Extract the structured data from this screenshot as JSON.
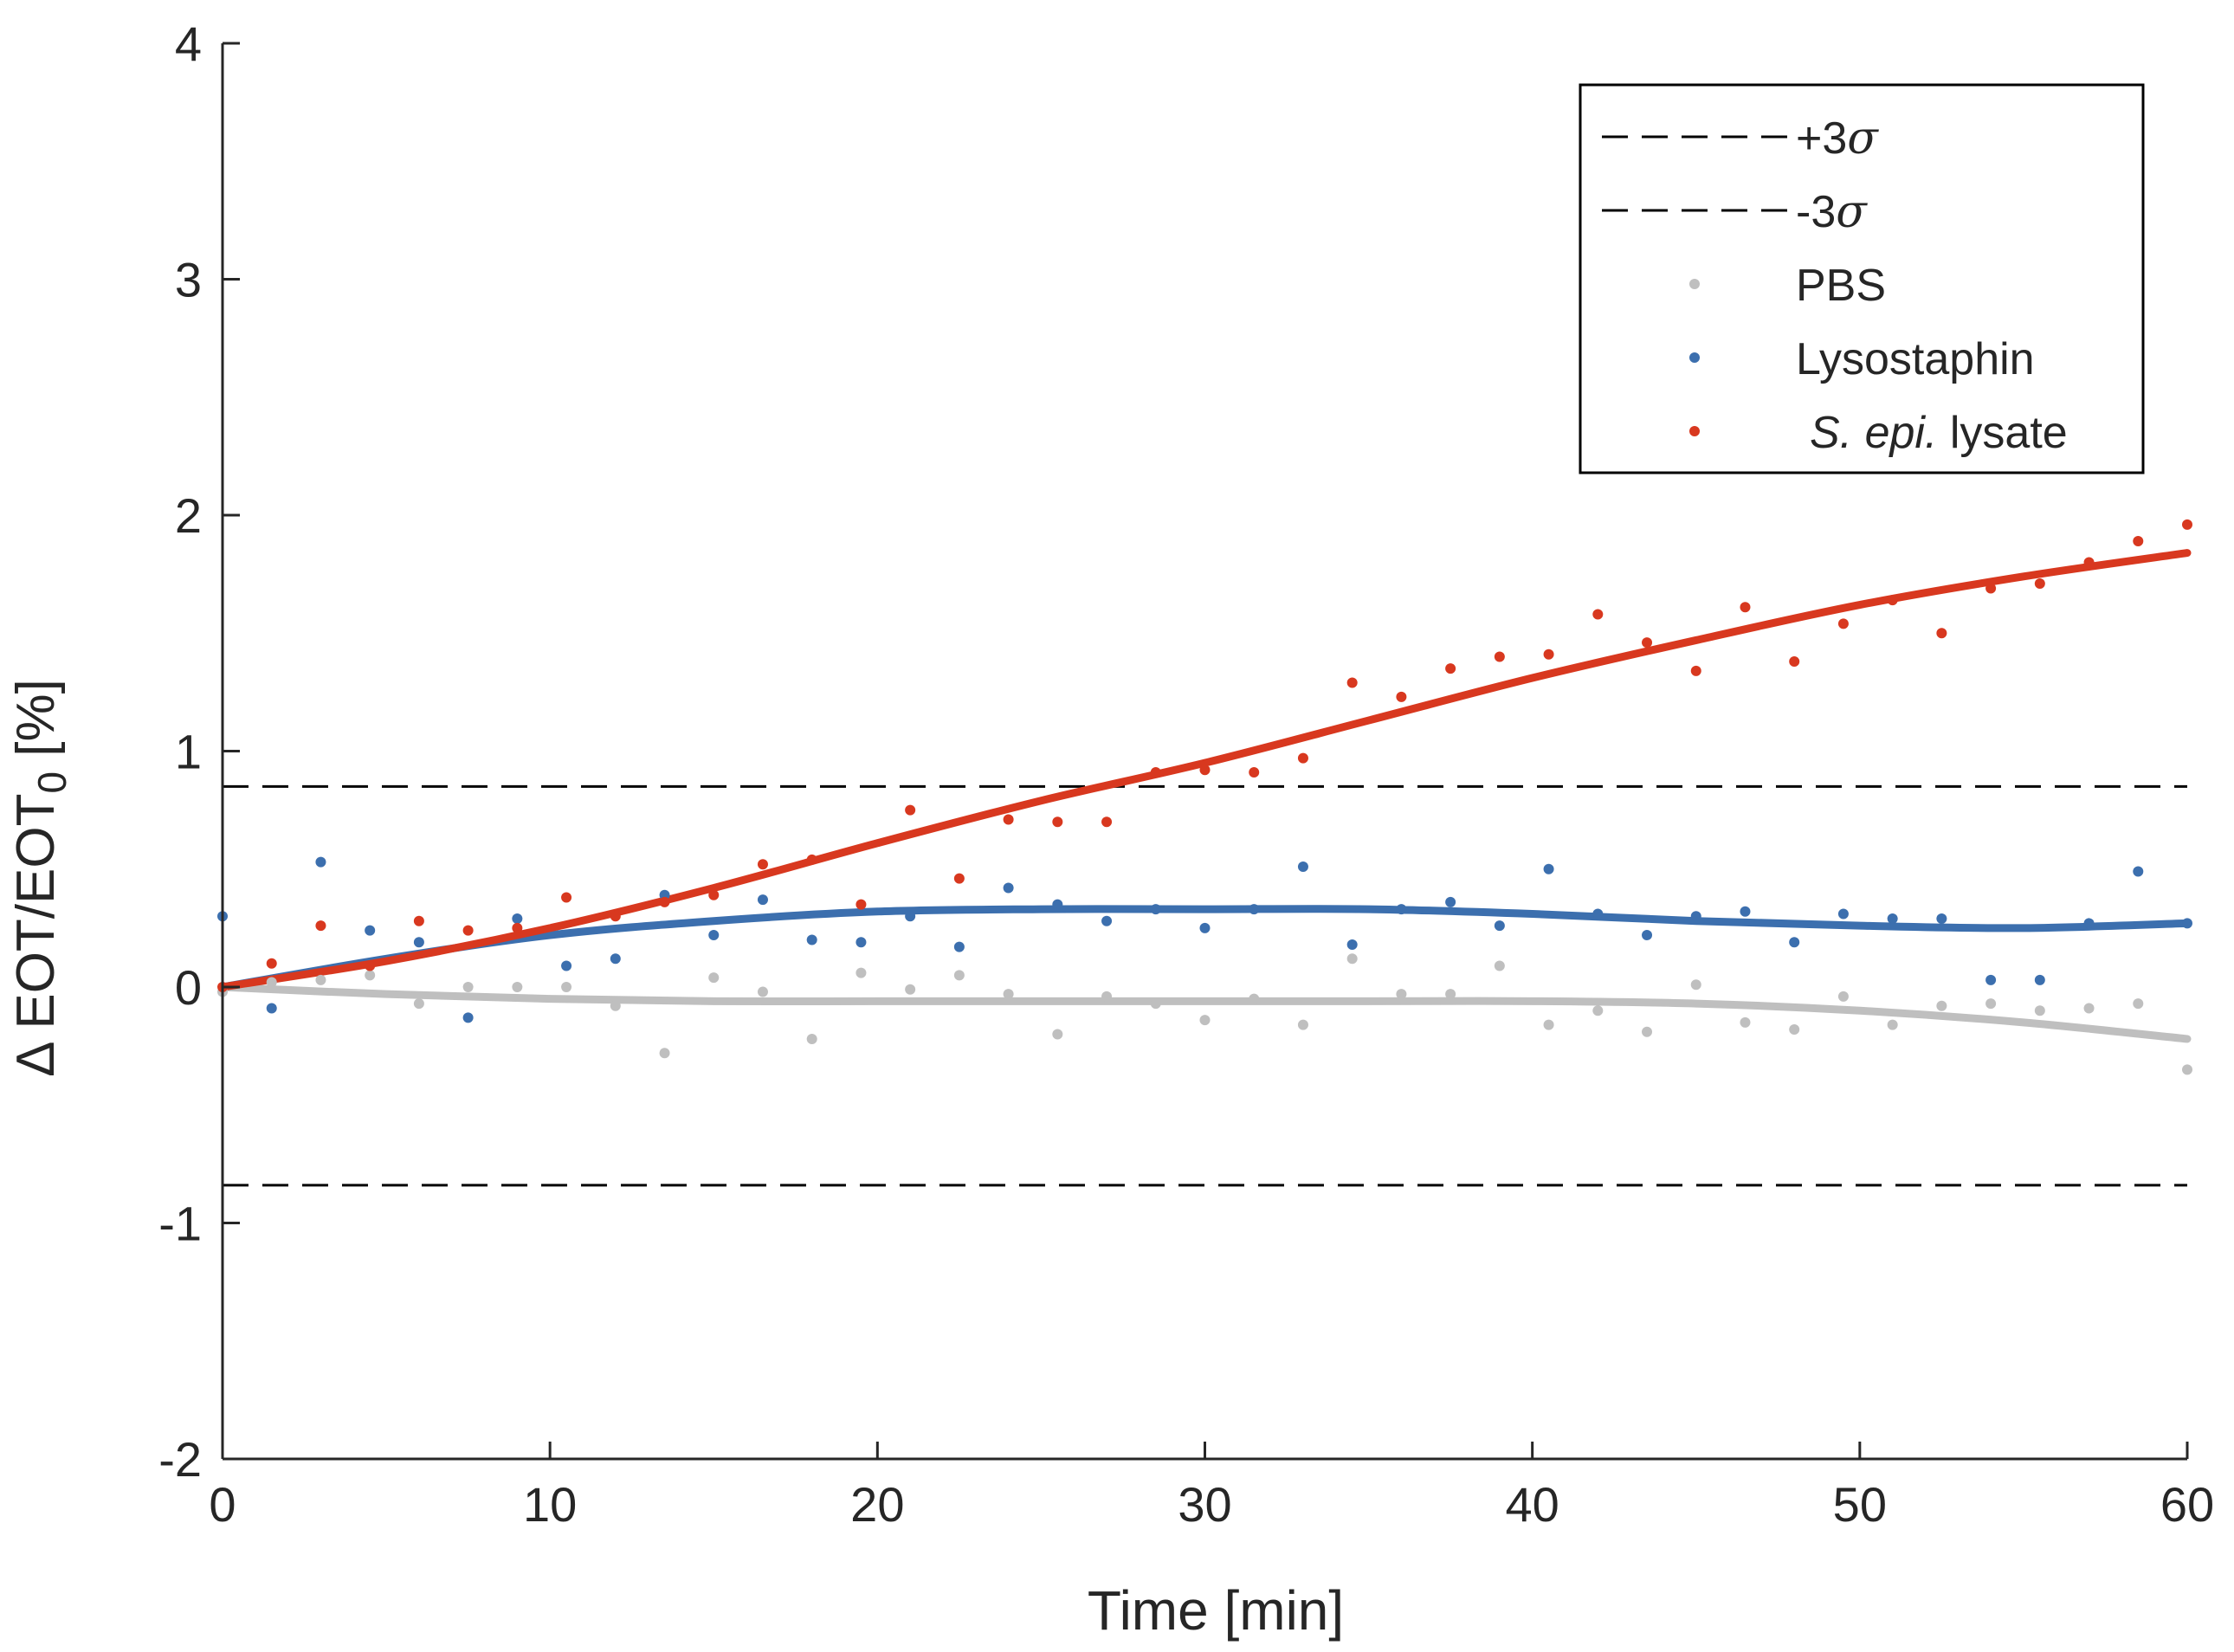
{
  "chart_data": {
    "type": "scatter",
    "title": "",
    "xlabel": "Time [min]",
    "ylabel_main": "Δ EOT/EOT",
    "ylabel_sub": "0",
    "ylabel_tail": " [%]",
    "xlim": [
      0,
      60
    ],
    "ylim": [
      -2,
      4
    ],
    "x_ticks": [
      0,
      10,
      20,
      30,
      40,
      50,
      60
    ],
    "x_tick_labels": [
      "0",
      "10",
      "20",
      "30",
      "40",
      "50",
      "60"
    ],
    "y_ticks": [
      -2,
      -1,
      0,
      1,
      2,
      3,
      4
    ],
    "y_tick_labels": [
      "-2",
      "-1",
      "0",
      "1",
      "2",
      "3",
      "4"
    ],
    "grid": false,
    "legend_position": "top-right",
    "thresholds": [
      {
        "name": "+3σ",
        "label_main": "+3",
        "label_sigma": "σ",
        "value": 0.85,
        "color": "#000000"
      },
      {
        "name": "-3σ",
        "label_main": "-3",
        "label_sigma": "σ",
        "value": -0.84,
        "color": "#000000"
      }
    ],
    "series": [
      {
        "name": "PBS",
        "label_italic": "",
        "label_plain": "PBS",
        "color": "#bfbfbf",
        "points": [
          [
            0,
            -0.02
          ],
          [
            1.5,
            0.02
          ],
          [
            3,
            0.03
          ],
          [
            4.5,
            0.05
          ],
          [
            6,
            -0.07
          ],
          [
            7.5,
            0.0
          ],
          [
            9,
            0.0
          ],
          [
            10.5,
            0.0
          ],
          [
            12,
            -0.08
          ],
          [
            13.5,
            -0.28
          ],
          [
            15,
            0.04
          ],
          [
            16.5,
            -0.02
          ],
          [
            18,
            -0.22
          ],
          [
            19.5,
            0.06
          ],
          [
            21,
            -0.01
          ],
          [
            22.5,
            0.05
          ],
          [
            24,
            -0.03
          ],
          [
            25.5,
            -0.2
          ],
          [
            27,
            -0.04
          ],
          [
            28.5,
            -0.07
          ],
          [
            30,
            -0.14
          ],
          [
            31.5,
            -0.05
          ],
          [
            33,
            -0.16
          ],
          [
            34.5,
            0.12
          ],
          [
            36,
            -0.03
          ],
          [
            37.5,
            -0.03
          ],
          [
            39,
            0.09
          ],
          [
            40.5,
            -0.16
          ],
          [
            42,
            -0.1
          ],
          [
            43.5,
            -0.19
          ],
          [
            45,
            0.01
          ],
          [
            46.5,
            -0.15
          ],
          [
            48,
            -0.18
          ],
          [
            49.5,
            -0.04
          ],
          [
            51,
            -0.16
          ],
          [
            52.5,
            -0.08
          ],
          [
            54,
            -0.07
          ],
          [
            55.5,
            -0.1
          ],
          [
            57,
            -0.09
          ],
          [
            58.5,
            -0.07
          ],
          [
            60,
            -0.35
          ]
        ],
        "fit": [
          [
            0,
            0
          ],
          [
            5,
            -0.03
          ],
          [
            10,
            -0.05
          ],
          [
            15,
            -0.06
          ],
          [
            20,
            -0.06
          ],
          [
            25,
            -0.06
          ],
          [
            30,
            -0.06
          ],
          [
            35,
            -0.06
          ],
          [
            40,
            -0.06
          ],
          [
            45,
            -0.07
          ],
          [
            50,
            -0.1
          ],
          [
            55,
            -0.15
          ],
          [
            60,
            -0.22
          ]
        ]
      },
      {
        "name": "Lysostaphin",
        "label_italic": "",
        "label_plain": "Lysostaphin",
        "color": "#3c6fae",
        "points": [
          [
            0,
            0.3
          ],
          [
            1.5,
            -0.09
          ],
          [
            3,
            0.53
          ],
          [
            4.5,
            0.24
          ],
          [
            6,
            0.19
          ],
          [
            7.5,
            -0.13
          ],
          [
            9,
            0.29
          ],
          [
            10.5,
            0.09
          ],
          [
            12,
            0.12
          ],
          [
            13.5,
            0.39
          ],
          [
            15,
            0.22
          ],
          [
            16.5,
            0.37
          ],
          [
            18,
            0.2
          ],
          [
            19.5,
            0.19
          ],
          [
            21,
            0.3
          ],
          [
            22.5,
            0.17
          ],
          [
            24,
            0.42
          ],
          [
            25.5,
            0.35
          ],
          [
            27,
            0.28
          ],
          [
            28.5,
            0.33
          ],
          [
            30,
            0.25
          ],
          [
            31.5,
            0.33
          ],
          [
            33,
            0.51
          ],
          [
            34.5,
            0.18
          ],
          [
            36,
            0.33
          ],
          [
            37.5,
            0.36
          ],
          [
            39,
            0.26
          ],
          [
            40.5,
            0.5
          ],
          [
            42,
            0.31
          ],
          [
            43.5,
            0.22
          ],
          [
            45,
            0.3
          ],
          [
            46.5,
            0.32
          ],
          [
            48,
            0.19
          ],
          [
            49.5,
            0.31
          ],
          [
            51,
            0.29
          ],
          [
            52.5,
            0.29
          ],
          [
            54,
            0.03
          ],
          [
            55.5,
            0.03
          ],
          [
            57,
            0.27
          ],
          [
            58.5,
            0.49
          ],
          [
            60,
            0.27
          ]
        ],
        "fit": [
          [
            0,
            0
          ],
          [
            5,
            0.12
          ],
          [
            10,
            0.22
          ],
          [
            15,
            0.28
          ],
          [
            20,
            0.32
          ],
          [
            25,
            0.33
          ],
          [
            30,
            0.33
          ],
          [
            35,
            0.33
          ],
          [
            40,
            0.31
          ],
          [
            45,
            0.28
          ],
          [
            50,
            0.26
          ],
          [
            55,
            0.25
          ],
          [
            60,
            0.27
          ]
        ]
      },
      {
        "name": "S. epi. lysate",
        "label_italic": "S. epi.",
        "label_plain": " lysate",
        "color": "#d8381f",
        "points": [
          [
            0,
            0.0
          ],
          [
            1.5,
            0.1
          ],
          [
            3,
            0.26
          ],
          [
            4.5,
            0.09
          ],
          [
            6,
            0.28
          ],
          [
            7.5,
            0.24
          ],
          [
            9,
            0.25
          ],
          [
            10.5,
            0.38
          ],
          [
            12,
            0.3
          ],
          [
            13.5,
            0.36
          ],
          [
            15,
            0.39
          ],
          [
            16.5,
            0.52
          ],
          [
            18,
            0.54
          ],
          [
            19.5,
            0.35
          ],
          [
            21,
            0.75
          ],
          [
            22.5,
            0.46
          ],
          [
            24,
            0.71
          ],
          [
            25.5,
            0.7
          ],
          [
            27,
            0.7
          ],
          [
            28.5,
            0.91
          ],
          [
            30,
            0.92
          ],
          [
            31.5,
            0.91
          ],
          [
            33,
            0.97
          ],
          [
            34.5,
            1.29
          ],
          [
            36,
            1.23
          ],
          [
            37.5,
            1.35
          ],
          [
            39,
            1.4
          ],
          [
            40.5,
            1.41
          ],
          [
            42,
            1.58
          ],
          [
            43.5,
            1.46
          ],
          [
            45,
            1.34
          ],
          [
            46.5,
            1.61
          ],
          [
            48,
            1.38
          ],
          [
            49.5,
            1.54
          ],
          [
            51,
            1.64
          ],
          [
            52.5,
            1.5
          ],
          [
            54,
            1.69
          ],
          [
            55.5,
            1.71
          ],
          [
            57,
            1.8
          ],
          [
            58.5,
            1.89
          ],
          [
            60,
            1.96
          ]
        ],
        "fit": [
          [
            0,
            0
          ],
          [
            5,
            0.11
          ],
          [
            10,
            0.25
          ],
          [
            15,
            0.42
          ],
          [
            20,
            0.61
          ],
          [
            25,
            0.79
          ],
          [
            30,
            0.95
          ],
          [
            35,
            1.13
          ],
          [
            40,
            1.31
          ],
          [
            45,
            1.47
          ],
          [
            50,
            1.62
          ],
          [
            55,
            1.74
          ],
          [
            60,
            1.84
          ]
        ]
      }
    ]
  }
}
